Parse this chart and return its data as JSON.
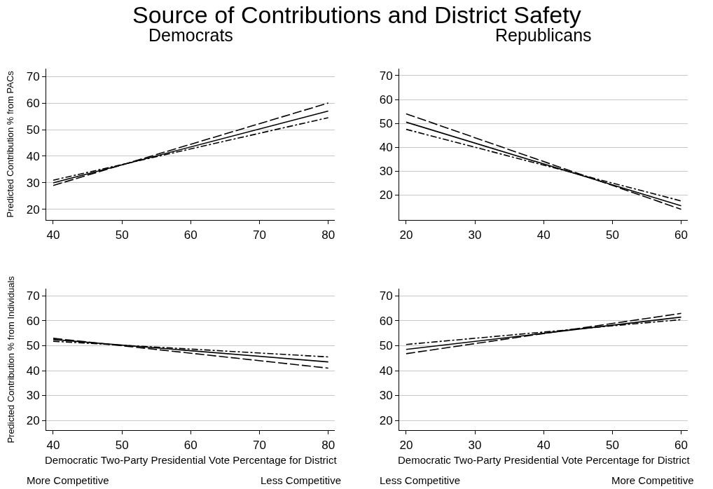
{
  "chart_data": [
    {
      "type": "line",
      "title": "Source of Contributions and District Safety",
      "subtitle": "Democrats",
      "ylabel": "Predicted Contribution % from PACs",
      "x": [
        40,
        80
      ],
      "xlim": [
        39,
        81
      ],
      "xticks": [
        40,
        50,
        60,
        70,
        80
      ],
      "ylim": [
        16,
        73
      ],
      "yticks": [
        20,
        30,
        40,
        50,
        60,
        70
      ],
      "grid": "y",
      "series": [
        {
          "color": "#000000",
          "line_style": "solid",
          "values": [
            30,
            57
          ]
        },
        {
          "color": "#000000",
          "line_style": "dashed",
          "values": [
            29,
            60
          ]
        },
        {
          "color": "#000000",
          "line_style": "dashed",
          "values": [
            31,
            54.5
          ]
        }
      ]
    },
    {
      "type": "line",
      "subtitle": "Republicans",
      "x": [
        20,
        60
      ],
      "xlim": [
        19,
        61
      ],
      "xticks": [
        20,
        30,
        40,
        50,
        60
      ],
      "ylim": [
        9.5,
        73
      ],
      "yticks": [
        20,
        30,
        40,
        50,
        60,
        70
      ],
      "grid": "y",
      "series": [
        {
          "color": "#000000",
          "line_style": "solid",
          "values": [
            50.5,
            15.5
          ]
        },
        {
          "color": "#000000",
          "line_style": "dashed",
          "values": [
            54,
            14
          ]
        },
        {
          "color": "#000000",
          "line_style": "dashed",
          "values": [
            47.5,
            17.5
          ]
        }
      ]
    },
    {
      "type": "line",
      "ylabel": "Predicted Contribution % from Individuals",
      "xlabel": "Democratic Two-Party Presidential Vote Percentage for District",
      "annotations": [
        "More Competitive",
        "Less Competitive"
      ],
      "x": [
        40,
        80
      ],
      "xlim": [
        39,
        81
      ],
      "xticks": [
        40,
        50,
        60,
        70,
        80
      ],
      "ylim": [
        16,
        73
      ],
      "yticks": [
        20,
        30,
        40,
        50,
        60,
        70
      ],
      "grid": "y",
      "series": [
        {
          "color": "#000000",
          "line_style": "solid",
          "values": [
            52.5,
            43.5
          ]
        },
        {
          "color": "#000000",
          "line_style": "dashed",
          "values": [
            53,
            41
          ]
        },
        {
          "color": "#000000",
          "line_style": "dashed",
          "values": [
            51.8,
            45.5
          ]
        }
      ]
    },
    {
      "type": "line",
      "xlabel": "Democratic Two-Party Presidential Vote Percentage for District",
      "annotations": [
        "Less Competitive",
        "More Competitive"
      ],
      "x": [
        20,
        60
      ],
      "xlim": [
        19,
        61
      ],
      "xticks": [
        20,
        30,
        40,
        50,
        60
      ],
      "ylim": [
        16,
        73
      ],
      "yticks": [
        20,
        30,
        40,
        50,
        60,
        70
      ],
      "grid": "y",
      "series": [
        {
          "color": "#000000",
          "line_style": "solid",
          "values": [
            48.5,
            61.5
          ]
        },
        {
          "color": "#000000",
          "line_style": "dashed",
          "values": [
            46.8,
            63
          ]
        },
        {
          "color": "#000000",
          "line_style": "dashed",
          "values": [
            50.5,
            60.5
          ]
        }
      ]
    }
  ]
}
